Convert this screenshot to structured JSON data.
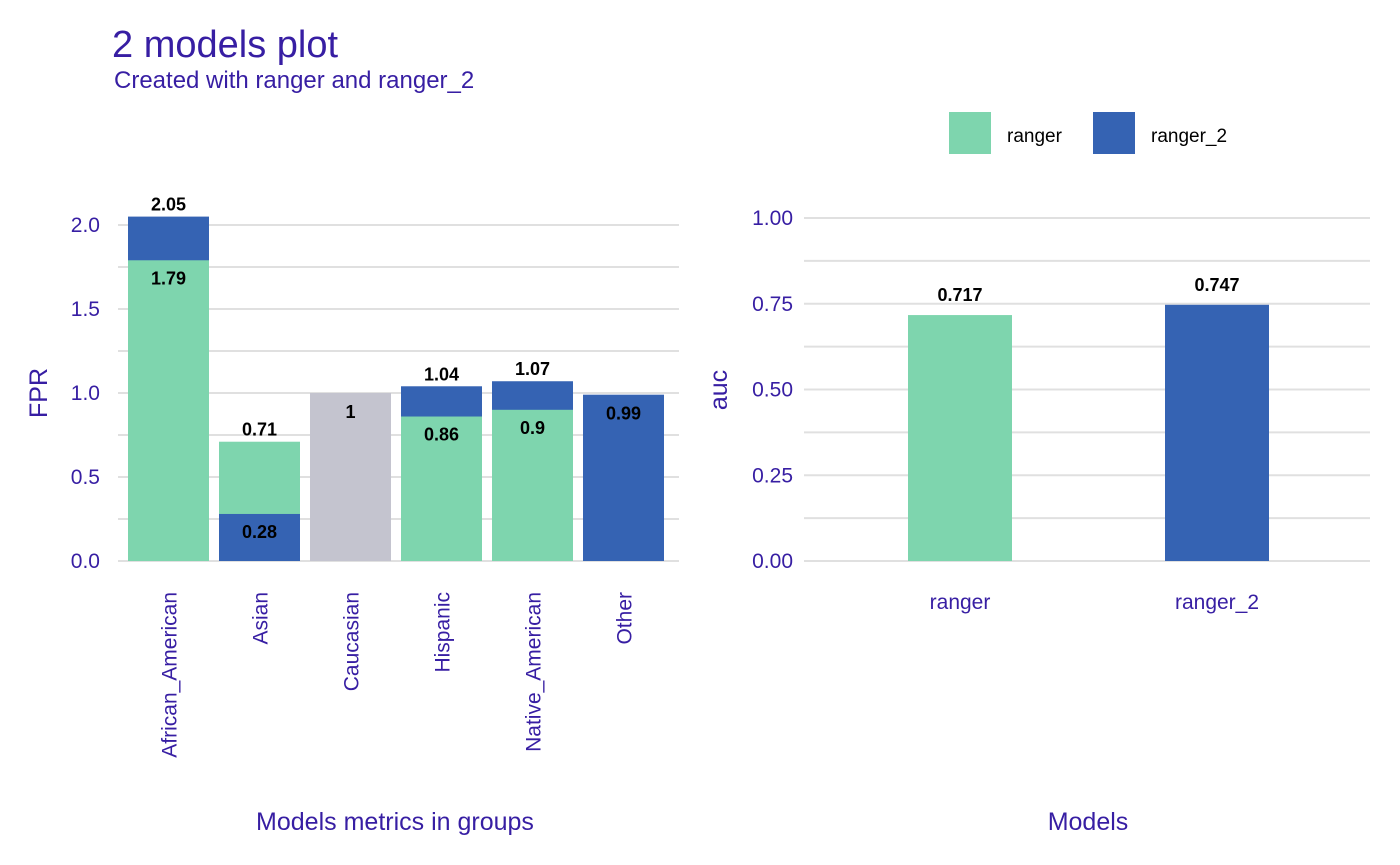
{
  "title": "2 models plot",
  "subtitle": "Created with ranger and ranger_2",
  "colors": {
    "ranger": "#7ed5ae",
    "ranger_2": "#3563b3",
    "reference": "#c4c4cf",
    "text": "#371ea3",
    "grid": "#e0e0e0"
  },
  "legend": {
    "position": "top-right",
    "items": [
      {
        "name": "ranger",
        "color": "#7ed5ae"
      },
      {
        "name": "ranger_2",
        "color": "#3563b3"
      }
    ]
  },
  "chart_data": [
    {
      "type": "bar",
      "xlabel": "Models metrics in groups",
      "ylabel": "FPR",
      "ylim": [
        0,
        2.1
      ],
      "yticks": [
        "0.0",
        "0.5",
        "1.0",
        "1.5",
        "2.0"
      ],
      "grid": true,
      "categories": [
        "African_American",
        "Asian",
        "Caucasian",
        "Hispanic",
        "Native_American",
        "Other"
      ],
      "series": [
        {
          "name": "ranger",
          "values": [
            1.79,
            0.71,
            null,
            0.86,
            0.9,
            null
          ]
        },
        {
          "name": "ranger_2",
          "values": [
            2.05,
            0.28,
            null,
            1.04,
            1.07,
            0.99
          ]
        },
        {
          "values": [
            null,
            null,
            1,
            null,
            null,
            null
          ]
        }
      ],
      "data_labels": [
        {
          "category": "African_American",
          "labels": [
            "2.05",
            "1.79"
          ]
        },
        {
          "category": "Asian",
          "labels": [
            "0.71",
            "0.28"
          ]
        },
        {
          "category": "Caucasian",
          "labels": [
            "1"
          ]
        },
        {
          "category": "Hispanic",
          "labels": [
            "1.04",
            "0.86"
          ]
        },
        {
          "category": "Native_American",
          "labels": [
            "1.07",
            "0.9"
          ]
        },
        {
          "category": "Other",
          "labels": [
            "0.99"
          ]
        }
      ]
    },
    {
      "type": "bar",
      "xlabel": "Models",
      "ylabel": "auc",
      "ylim": [
        0,
        1
      ],
      "yticks": [
        "0.00",
        "0.25",
        "0.50",
        "0.75",
        "1.00"
      ],
      "grid": true,
      "categories": [
        "ranger",
        "ranger_2"
      ],
      "values": [
        0.717,
        0.747
      ],
      "labels": [
        "0.717",
        "0.747"
      ]
    }
  ]
}
